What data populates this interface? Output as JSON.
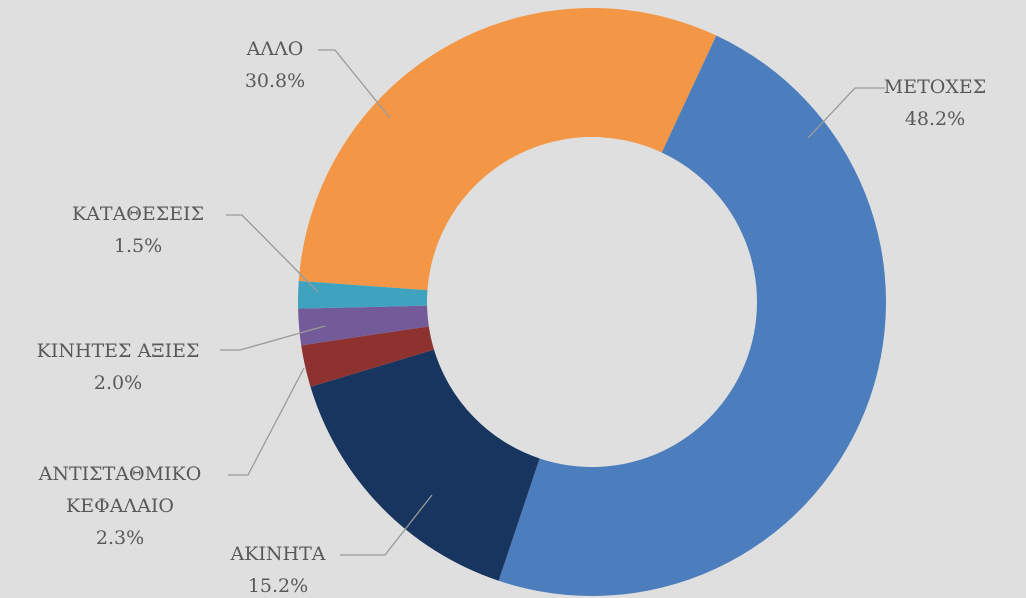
{
  "chart_data": {
    "type": "donut",
    "categories": [
      "ΜΕΤΟΧΕΣ",
      "ΑΚΙΝΗΤΑ",
      "ΑΝΤΙΣΤΑΘΜΙΚΟ\nΚΕΦΑΛΑΙΟ",
      "ΚΙΝΗΤΕΣ ΑΞΙΕΣ",
      "ΚΑΤΑΘΕΣΕΙΣ",
      "ΑΛΛΟ"
    ],
    "values": [
      48.2,
      15.2,
      2.3,
      2.0,
      1.5,
      30.8
    ],
    "value_labels": [
      "48.2%",
      "15.2%",
      "2.3%",
      "2.0%",
      "1.5%",
      "30.8%"
    ],
    "colors": [
      "#4c7ebd",
      "#17355e",
      "#8e3230",
      "#735a99",
      "#3fa3c0",
      "#f39646"
    ]
  }
}
